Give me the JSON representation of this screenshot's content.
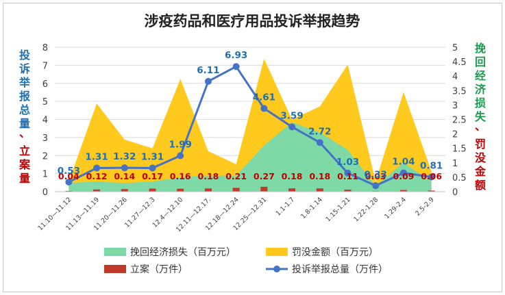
{
  "chart_data": {
    "type": "combo",
    "title": "涉疫药品和医疗用品投诉举报趋势",
    "left_axis": {
      "label_blue": "投诉举报总量",
      "label_sep": "、",
      "label_red": "立案量",
      "range": [
        0,
        8
      ],
      "ticks": [
        "0",
        "1",
        "2",
        "3",
        "4",
        "5",
        "6",
        "7",
        "8"
      ]
    },
    "right_axis": {
      "label_green": "挽回经济损失",
      "label_sep": "、",
      "label_red": "罚没金额",
      "range": [
        0,
        5
      ],
      "ticks": [
        "0",
        "0.5",
        "1",
        "1.5",
        "2",
        "2.5",
        "3",
        "3.5",
        "4",
        "4.5",
        "5"
      ]
    },
    "categories": [
      "11.10—11.12",
      "11.13—11.19",
      "11.20—11.26",
      "11.27—12.3",
      "12.4—12.10",
      "12.11—12.17.",
      "12.18—12.24",
      "12.25—12.31",
      "1.1-1.7",
      "1.8-1.14",
      "1.15-1.21",
      "1.22-1.28",
      "1.29-2.4",
      "2.5-2.9"
    ],
    "series": [
      {
        "name": "挽回经济损失（百万元）",
        "type": "area",
        "axis": "right",
        "color": "#7fd9a6",
        "values": [
          0.3,
          0.35,
          0.3,
          0.35,
          0.5,
          0.55,
          0.55,
          1.6,
          2.4,
          2.05,
          1.45,
          0.2,
          1.0,
          0.35
        ]
      },
      {
        "name": "罚没金额（百万元）",
        "type": "area",
        "axis": "right",
        "color": "#ffc91e",
        "values": [
          0.35,
          3.05,
          1.8,
          1.5,
          3.9,
          1.4,
          0.95,
          4.6,
          2.5,
          2.95,
          4.4,
          0.35,
          3.45,
          0.7
        ]
      },
      {
        "name": "立案（万件）",
        "type": "bar",
        "axis": "left",
        "color": "#c0392b",
        "values": [
          0.04,
          0.12,
          0.14,
          0.17,
          0.16,
          0.18,
          0.21,
          0.27,
          0.18,
          0.18,
          0.11,
          0.03,
          0.09,
          0.06
        ],
        "labels": [
          "0.04",
          "0.12",
          "0.14",
          "0.17",
          "0.16",
          "0.18",
          "0.21",
          "0.27",
          "0.18",
          "0.18",
          "0.11",
          "0.03",
          "0.09",
          "0.06"
        ]
      },
      {
        "name": "投诉举报总量（万件）",
        "type": "line",
        "axis": "left",
        "color": "#4472c4",
        "values": [
          0.53,
          1.31,
          1.32,
          1.31,
          1.99,
          6.11,
          6.93,
          4.61,
          3.59,
          2.72,
          1.03,
          0.33,
          1.04,
          0.81
        ],
        "labels": [
          "0.53",
          "1.31",
          "1.32",
          "1.31",
          "1.99",
          "6.11",
          "6.93",
          "4.61",
          "3.59",
          "2.72",
          "1.03",
          "0.33",
          "1.04",
          "0.81"
        ]
      }
    ],
    "legend": {
      "position": "bottom",
      "items": [
        "挽回经济损失（百万元）",
        "罚没金额（百万元）",
        "立案（万件）",
        "投诉举报总量（万件）"
      ]
    },
    "colors": {
      "blue_text": "#1f6fb3",
      "red_text": "#c00000",
      "green_text": "#1a9a4a",
      "axis_text": "#404040"
    }
  }
}
